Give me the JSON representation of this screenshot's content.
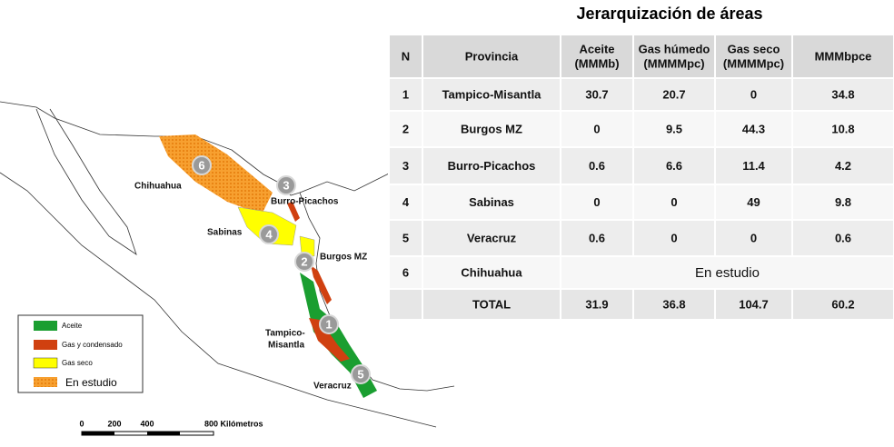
{
  "title": "Jerarquización de áreas",
  "table": {
    "header": [
      [
        "N"
      ],
      [
        "Provincia"
      ],
      [
        "Aceite",
        "(MMMb)"
      ],
      [
        "Gas húmedo",
        "(MMMMpc)"
      ],
      [
        "Gas seco",
        "(MMMMpc)"
      ],
      [
        "MMMbpce"
      ]
    ],
    "rows": [
      [
        "1",
        "Tampico-Misantla",
        "30.7",
        "20.7",
        "0",
        "34.8"
      ],
      [
        "2",
        "Burgos MZ",
        "0",
        "9.5",
        "44.3",
        "10.8"
      ],
      [
        "3",
        "Burro-Picachos",
        "0.6",
        "6.6",
        "11.4",
        "4.2"
      ],
      [
        "4",
        "Sabinas",
        "0",
        "0",
        "49",
        "9.8"
      ],
      [
        "5",
        "Veracruz",
        "0.6",
        "0",
        "0",
        "0.6"
      ],
      [
        "6",
        "Chihuahua",
        "En estudio"
      ]
    ],
    "total": [
      "TOTAL",
      "31.9",
      "36.8",
      "104.7",
      "60.2"
    ]
  },
  "map": {
    "labels": [
      "Chihuahua",
      "Burro-Picachos",
      "Sabinas",
      "Burgos MZ",
      "Tampico-",
      "Misantla",
      "Veracruz"
    ],
    "markers": [
      "6",
      "3",
      "4",
      "2",
      "1",
      "5"
    ],
    "legend": [
      "Aceite",
      "Gas y condensado",
      "Gas seco",
      "En estudio"
    ],
    "scale": [
      "0",
      "200",
      "400",
      "800 Kilómetros"
    ]
  }
}
